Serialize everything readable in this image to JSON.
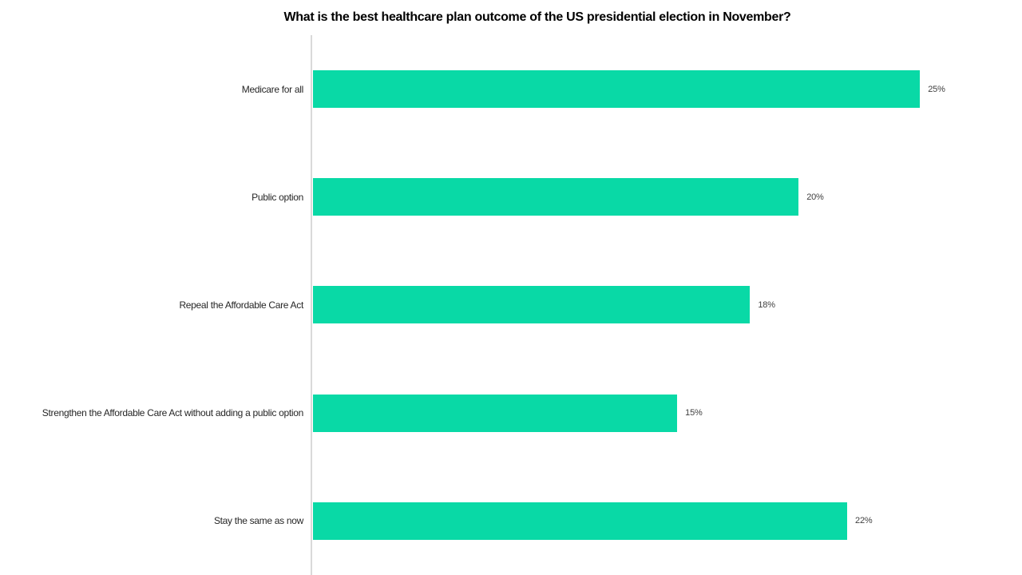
{
  "chart_data": {
    "type": "bar",
    "orientation": "horizontal",
    "title": "What is the best healthcare plan outcome of the US presidential election in November?",
    "categories": [
      "Medicare for all",
      "Public option",
      "Repeal the Affordable Care Act",
      "Strengthen the Affordable Care Act without adding a public option",
      "Stay the same as now"
    ],
    "values": [
      25,
      20,
      18,
      15,
      22
    ],
    "value_labels": [
      "25%",
      "20%",
      "18%",
      "15%",
      "22%"
    ],
    "xlabel": "",
    "ylabel": "",
    "xlim": [
      0,
      29.2
    ],
    "grid": false,
    "legend": false,
    "colors": {
      "bar": "#09d9a6",
      "axis_line": "#d9d9d9",
      "title_text": "#000000",
      "category_text": "#262626",
      "value_text": "#404040",
      "background": "#ffffff"
    }
  }
}
